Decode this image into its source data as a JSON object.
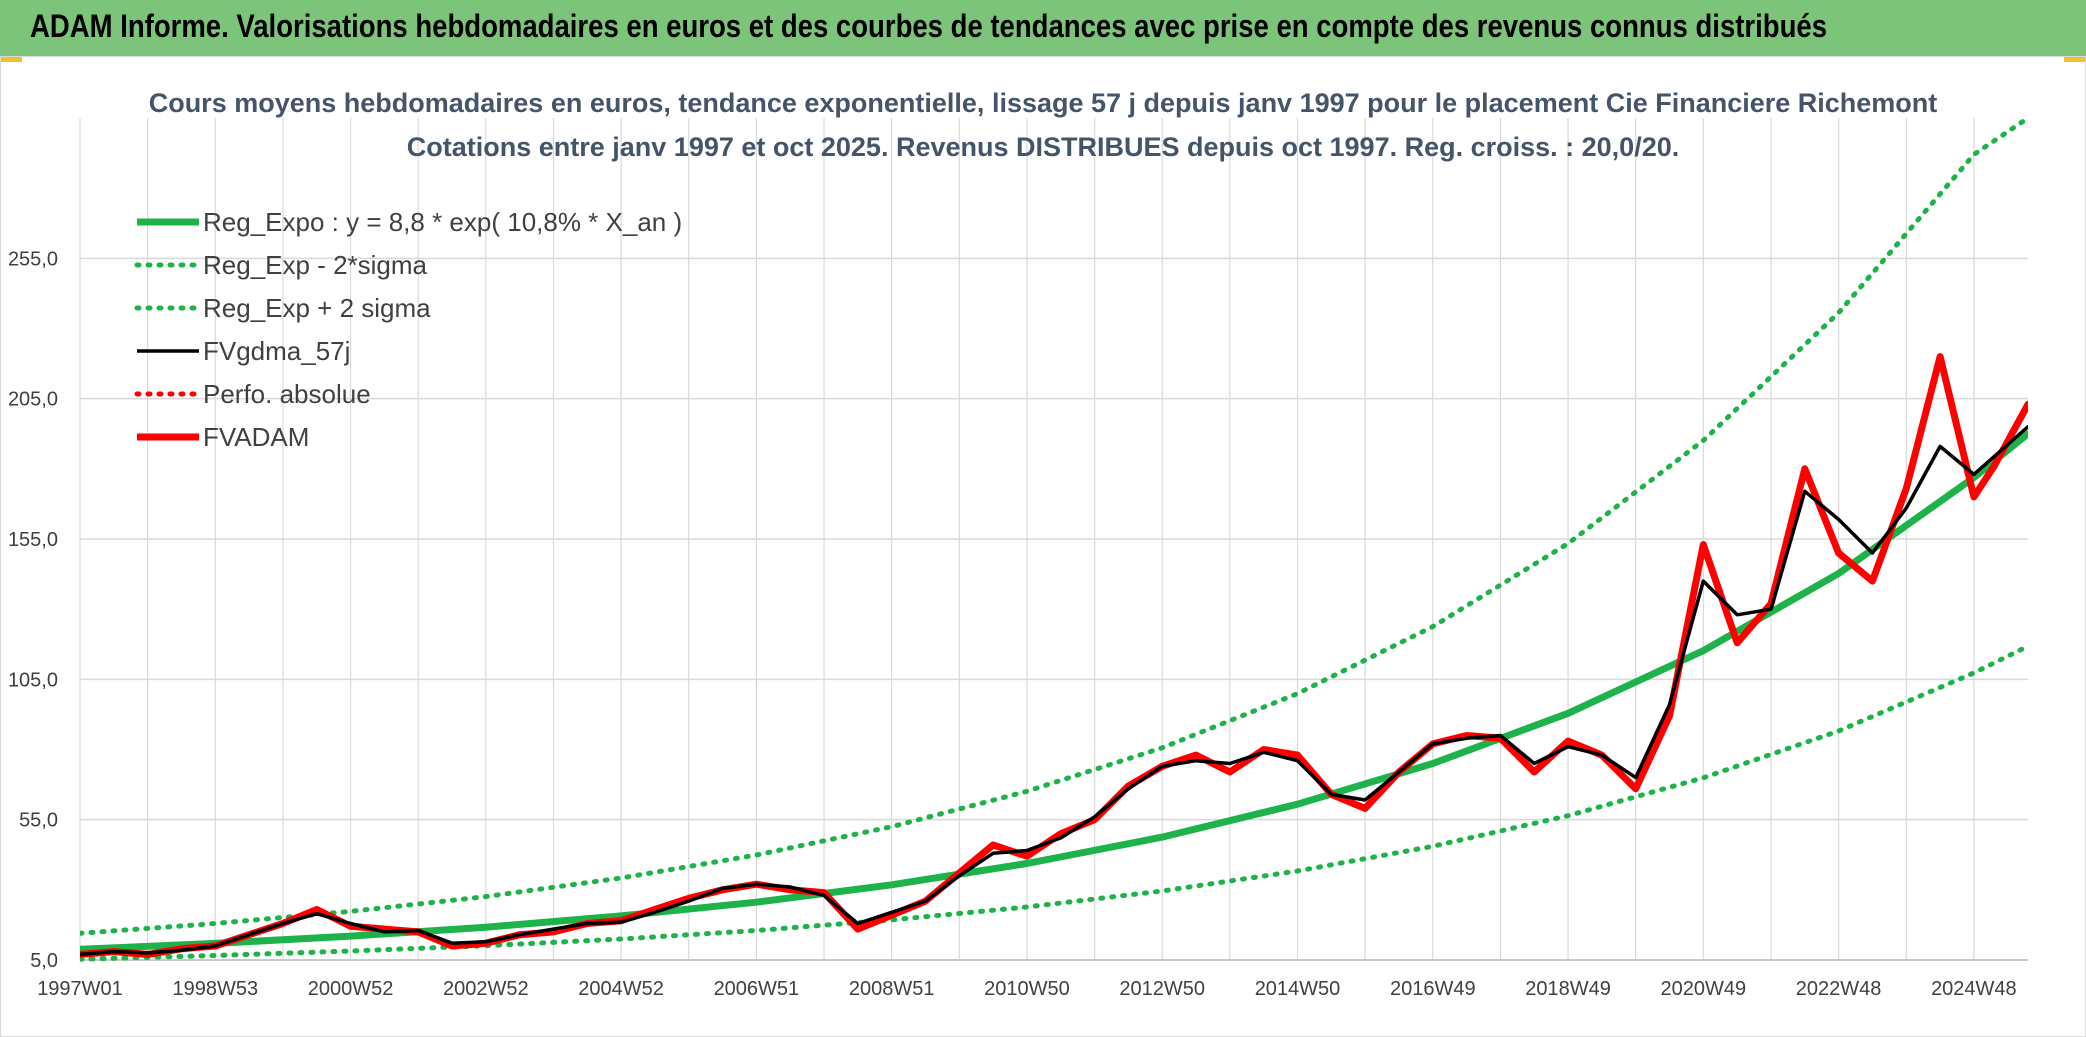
{
  "header": {
    "banner_title": "ADAM Informe. Valorisations hebdomadaires en euros et des courbes de tendances avec prise en compte des revenus connus distribués"
  },
  "colors": {
    "banner": "#7cc47a",
    "trend": "#1db34a",
    "smooth": "#000000",
    "price": "#ff0000",
    "grid": "#d9d9d9",
    "title": "#44546a"
  },
  "chart_data": {
    "type": "line",
    "title": "Cours moyens hebdomadaires en euros, tendance exponentielle, lissage 57 j depuis janv 1997 pour le placement Cie Financiere Richemont",
    "subtitle": "Cotations entre janv 1997 et oct 2025. Revenus DISTRIBUES depuis oct 1997. Reg. croiss. : 20,0/20.",
    "xlabel": "",
    "ylabel": "",
    "xlim": [
      1997.0,
      2025.8
    ],
    "ylim": [
      5,
      305
    ],
    "y_ticks": [
      5,
      55,
      105,
      155,
      205,
      255
    ],
    "y_tick_labels": [
      "5,0",
      "55,0",
      "105,0",
      "155,0",
      "205,0",
      "255,0"
    ],
    "x_ticks": [
      1997.0,
      1999.0,
      2001.0,
      2003.0,
      2005.0,
      2007.0,
      2009.0,
      2011.0,
      2013.0,
      2015.0,
      2017.0,
      2019.0,
      2021.0,
      2023.0,
      2025.0
    ],
    "x_tick_labels": [
      "1997W01",
      "1998W53",
      "2000W52",
      "2002W52",
      "2004W52",
      "2006W51",
      "2008W51",
      "2010W50",
      "2012W50",
      "2014W50",
      "2016W49",
      "2018W49",
      "2020W49",
      "2022W48",
      "2024W48"
    ],
    "grid": true,
    "legend_position": "top-left",
    "legend": [
      {
        "label": "Reg_Expo : y = 8,8 * exp( 10,8% *  X_an )",
        "color": "#1db34a",
        "style": "solid-thick"
      },
      {
        "label": "Reg_Exp - 2*sigma",
        "color": "#1db34a",
        "style": "dotted"
      },
      {
        "label": "Reg_Exp + 2 sigma",
        "color": "#1db34a",
        "style": "dotted"
      },
      {
        "label": "FVgdma_57j",
        "color": "#000000",
        "style": "solid"
      },
      {
        "label": "Perfo. absolue",
        "color": "#ff0000",
        "style": "dotted"
      },
      {
        "label": "FVADAM",
        "color": "#ff0000",
        "style": "solid-thick"
      }
    ],
    "series": [
      {
        "name": "Reg_Expo : y = 8,8 * exp( 10,8% *  X_an )",
        "x": [
          1997.0,
          1999.0,
          2001.0,
          2003.0,
          2005.0,
          2007.0,
          2009.0,
          2011.0,
          2013.0,
          2015.0,
          2017.0,
          2019.0,
          2021.0,
          2023.0,
          2025.0,
          2025.8
        ],
        "y": [
          8.8,
          10.9,
          13.5,
          16.7,
          20.7,
          25.6,
          31.8,
          39.4,
          48.8,
          60.5,
          75.0,
          92.9,
          115.2,
          142.7,
          176.9,
          192.5
        ]
      },
      {
        "name": "Reg_Exp - 2*sigma",
        "x": [
          1997.0,
          1999.0,
          2001.0,
          2003.0,
          2005.0,
          2007.0,
          2009.0,
          2011.0,
          2013.0,
          2015.0,
          2017.0,
          2019.0,
          2021.0,
          2023.0,
          2025.0,
          2025.8
        ],
        "y": [
          5.3,
          6.6,
          8.2,
          10.1,
          12.5,
          15.5,
          19.3,
          23.9,
          29.6,
          36.7,
          45.5,
          56.4,
          69.9,
          86.6,
          107.3,
          116.8
        ]
      },
      {
        "name": "Reg_Exp + 2 sigma",
        "x": [
          1997.0,
          1999.0,
          2001.0,
          2003.0,
          2005.0,
          2007.0,
          2009.0,
          2011.0,
          2013.0,
          2015.0,
          2017.0,
          2019.0,
          2021.0,
          2023.0,
          2025.0,
          2025.8
        ],
        "y": [
          14.5,
          18.0,
          22.3,
          27.6,
          34.2,
          42.4,
          52.5,
          65.1,
          80.6,
          99.9,
          123.8,
          153.4,
          190.1,
          235.6,
          292.0,
          305.0
        ]
      },
      {
        "name": "FVgdma_57j",
        "x": [
          1997.0,
          1997.5,
          1998.0,
          1998.5,
          1999.0,
          1999.5,
          2000.0,
          2000.5,
          2001.0,
          2001.5,
          2002.0,
          2002.5,
          2003.0,
          2003.5,
          2004.0,
          2004.5,
          2005.0,
          2005.5,
          2006.0,
          2006.5,
          2007.0,
          2007.5,
          2008.0,
          2008.5,
          2009.0,
          2009.5,
          2010.0,
          2010.5,
          2011.0,
          2011.5,
          2012.0,
          2012.5,
          2013.0,
          2013.5,
          2014.0,
          2014.5,
          2015.0,
          2015.5,
          2016.0,
          2016.5,
          2017.0,
          2017.5,
          2018.0,
          2018.5,
          2019.0,
          2019.5,
          2020.0,
          2020.5,
          2021.0,
          2021.5,
          2022.0,
          2022.5,
          2023.0,
          2023.5,
          2024.0,
          2024.5,
          2025.0,
          2025.8
        ],
        "y": [
          7.0,
          8.0,
          7.5,
          8.5,
          10.0,
          14.0,
          18.0,
          21.5,
          18.0,
          15.0,
          15.5,
          11.0,
          11.5,
          14.0,
          16.0,
          18.0,
          18.5,
          22.0,
          26.0,
          30.5,
          32.0,
          31.0,
          28.0,
          18.0,
          22.0,
          26.0,
          35.0,
          43.0,
          44.0,
          48.5,
          56.0,
          66.0,
          74.0,
          76.0,
          75.0,
          79.0,
          76.0,
          64.0,
          62.0,
          72.0,
          82.0,
          84.0,
          85.0,
          75.0,
          81.0,
          78.0,
          70.0,
          96.0,
          140.0,
          128.0,
          130.0,
          172.0,
          162.0,
          150.0,
          166.0,
          188.0,
          178.0,
          195.0
        ]
      },
      {
        "name": "FVADAM",
        "x": [
          1997.0,
          1997.5,
          1998.0,
          1998.5,
          1999.0,
          1999.5,
          2000.0,
          2000.5,
          2001.0,
          2001.5,
          2002.0,
          2002.5,
          2003.0,
          2003.5,
          2004.0,
          2004.5,
          2005.0,
          2005.5,
          2006.0,
          2006.5,
          2007.0,
          2007.5,
          2008.0,
          2008.5,
          2009.0,
          2009.5,
          2010.0,
          2010.5,
          2011.0,
          2011.5,
          2012.0,
          2012.5,
          2013.0,
          2013.5,
          2014.0,
          2014.5,
          2015.0,
          2015.5,
          2016.0,
          2016.5,
          2017.0,
          2017.5,
          2018.0,
          2018.5,
          2019.0,
          2019.5,
          2020.0,
          2020.5,
          2021.0,
          2021.5,
          2022.0,
          2022.5,
          2023.0,
          2023.5,
          2024.0,
          2024.5,
          2025.0,
          2025.3,
          2025.8
        ],
        "y": [
          7.0,
          8.0,
          7.0,
          9.0,
          10.0,
          14.0,
          18.0,
          23.0,
          17.0,
          16.0,
          15.0,
          10.0,
          11.0,
          14.0,
          15.0,
          18.0,
          19.0,
          23.0,
          27.0,
          30.0,
          32.0,
          30.0,
          29.0,
          16.0,
          21.0,
          26.0,
          36.0,
          46.0,
          42.0,
          50.0,
          55.0,
          67.0,
          74.0,
          78.0,
          72.0,
          80.0,
          78.0,
          64.0,
          59.0,
          72.0,
          82.0,
          85.0,
          84.0,
          72.0,
          83.0,
          78.0,
          66.0,
          92.0,
          153.0,
          118.0,
          132.0,
          180.0,
          150.0,
          140.0,
          173.0,
          220.0,
          170.0,
          181.0,
          203.0
        ]
      }
    ]
  }
}
